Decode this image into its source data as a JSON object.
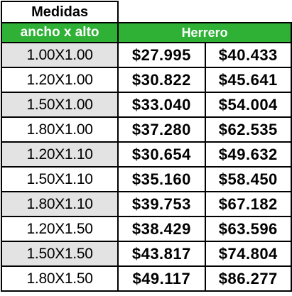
{
  "table": {
    "title": "Medidas",
    "size_header": "ancho x alto",
    "group_header": "Herrero",
    "rows": [
      {
        "size": "1.00X1.00",
        "price_a": "$27.995",
        "price_b": "$40.433"
      },
      {
        "size": "1.20X1.00",
        "price_a": "$30.822",
        "price_b": "$45.641"
      },
      {
        "size": "1.50X1.00",
        "price_a": "$33.040",
        "price_b": "$54.004"
      },
      {
        "size": "1.80X1.00",
        "price_a": "$37.280",
        "price_b": "$62.535"
      },
      {
        "size": "1.20X1.10",
        "price_a": "$30.654",
        "price_b": "$49.632"
      },
      {
        "size": "1.50X1.10",
        "price_a": "$35.160",
        "price_b": "$58.450"
      },
      {
        "size": "1.80X1.10",
        "price_a": "$39.753",
        "price_b": "$67.182"
      },
      {
        "size": "1.20X1.50",
        "price_a": "$38.429",
        "price_b": "$63.596"
      },
      {
        "size": "1.50X1.50",
        "price_a": "$43.817",
        "price_b": "$74.804"
      },
      {
        "size": "1.80X1.50",
        "price_a": "$49.117",
        "price_b": "$86.277"
      }
    ]
  },
  "colors": {
    "header_green": "#2eb135",
    "row_shade": "#e3e3e3",
    "border": "#000000"
  }
}
